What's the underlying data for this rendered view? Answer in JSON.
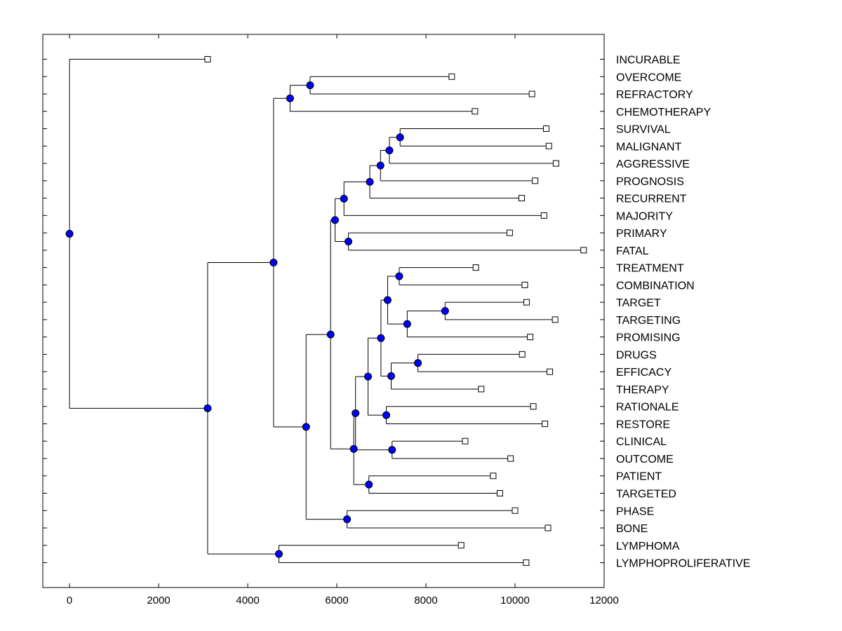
{
  "chart_data": {
    "type": "dendrogram",
    "title": "",
    "xlabel": "",
    "ylabel": "",
    "xlim": [
      -600,
      12000
    ],
    "x_ticks": [
      0,
      2000,
      4000,
      6000,
      8000,
      10000,
      12000
    ],
    "x_tick_labels": [
      "0",
      "2000",
      "4000",
      "6000",
      "8000",
      "10000",
      "12000"
    ],
    "grid": false,
    "legend": "none",
    "colors": {
      "node": "#0000ff",
      "line": "#000000",
      "leaf_marker": "#ffffff"
    },
    "leaves": [
      {
        "label": "INCURABLE",
        "value": 3100
      },
      {
        "label": "OVERCOME",
        "value": 8580
      },
      {
        "label": "REFRACTORY",
        "value": 10380
      },
      {
        "label": "CHEMOTHERAPY",
        "value": 9100
      },
      {
        "label": "SURVIVAL",
        "value": 10700
      },
      {
        "label": "MALIGNANT",
        "value": 10760
      },
      {
        "label": "AGGRESSIVE",
        "value": 10920
      },
      {
        "label": "PROGNOSIS",
        "value": 10450
      },
      {
        "label": "RECURRENT",
        "value": 10150
      },
      {
        "label": "MAJORITY",
        "value": 10650
      },
      {
        "label": "PRIMARY",
        "value": 9880
      },
      {
        "label": "FATAL",
        "value": 11540
      },
      {
        "label": "TREATMENT",
        "value": 9120
      },
      {
        "label": "COMBINATION",
        "value": 10220
      },
      {
        "label": "TARGET",
        "value": 10260
      },
      {
        "label": "TARGETING",
        "value": 10900
      },
      {
        "label": "PROMISING",
        "value": 10340
      },
      {
        "label": "DRUGS",
        "value": 10160
      },
      {
        "label": "EFFICACY",
        "value": 10780
      },
      {
        "label": "THERAPY",
        "value": 9240
      },
      {
        "label": "RATIONALE",
        "value": 10410
      },
      {
        "label": "RESTORE",
        "value": 10670
      },
      {
        "label": "CLINICAL",
        "value": 8880
      },
      {
        "label": "OUTCOME",
        "value": 9900
      },
      {
        "label": "PATIENT",
        "value": 9510
      },
      {
        "label": "TARGETED",
        "value": 9660
      },
      {
        "label": "PHASE",
        "value": 10000
      },
      {
        "label": "BONE",
        "value": 10740
      },
      {
        "label": "LYMPHOMA",
        "value": 8790
      },
      {
        "label": "LYMPHOPROLIFERATIVE",
        "value": 10250
      }
    ],
    "merges": [
      {
        "id": "n1",
        "height": 5400,
        "children": [
          "OVERCOME",
          "REFRACTORY"
        ]
      },
      {
        "id": "n2",
        "height": 4950,
        "children": [
          "n1",
          "CHEMOTHERAPY"
        ]
      },
      {
        "id": "n3",
        "height": 7420,
        "children": [
          "SURVIVAL",
          "MALIGNANT"
        ]
      },
      {
        "id": "n4",
        "height": 7180,
        "children": [
          "n3",
          "AGGRESSIVE"
        ]
      },
      {
        "id": "n5",
        "height": 6980,
        "children": [
          "n4",
          "PROGNOSIS"
        ]
      },
      {
        "id": "n6",
        "height": 6740,
        "children": [
          "n5",
          "RECURRENT"
        ]
      },
      {
        "id": "n7",
        "height": 6160,
        "children": [
          "n6",
          "MAJORITY"
        ]
      },
      {
        "id": "n8",
        "height": 6260,
        "children": [
          "PRIMARY",
          "FATAL"
        ]
      },
      {
        "id": "n9",
        "height": 5960,
        "children": [
          "n7",
          "n8"
        ]
      },
      {
        "id": "n10",
        "height": 7400,
        "children": [
          "TREATMENT",
          "COMBINATION"
        ]
      },
      {
        "id": "n11",
        "height": 8430,
        "children": [
          "TARGET",
          "TARGETING"
        ]
      },
      {
        "id": "n12",
        "height": 7580,
        "children": [
          "n11",
          "PROMISING"
        ]
      },
      {
        "id": "n13",
        "height": 7140,
        "children": [
          "n10",
          "n12"
        ]
      },
      {
        "id": "n14",
        "height": 7820,
        "children": [
          "DRUGS",
          "EFFICACY"
        ]
      },
      {
        "id": "n15",
        "height": 7220,
        "children": [
          "n14",
          "THERAPY"
        ]
      },
      {
        "id": "n16",
        "height": 6990,
        "children": [
          "n13",
          "n15"
        ]
      },
      {
        "id": "n17",
        "height": 7110,
        "children": [
          "RATIONALE",
          "RESTORE"
        ]
      },
      {
        "id": "n18",
        "height": 6700,
        "children": [
          "n16",
          "n17"
        ]
      },
      {
        "id": "n19",
        "height": 7240,
        "children": [
          "CLINICAL",
          "OUTCOME"
        ]
      },
      {
        "id": "n20",
        "height": 6420,
        "children": [
          "n18",
          "n19"
        ]
      },
      {
        "id": "n21",
        "height": 6720,
        "children": [
          "PATIENT",
          "TARGETED"
        ]
      },
      {
        "id": "n22",
        "height": 6380,
        "children": [
          "n20",
          "n21"
        ]
      },
      {
        "id": "n23",
        "height": 5860,
        "children": [
          "n9",
          "n22"
        ]
      },
      {
        "id": "n24",
        "height": 6230,
        "children": [
          "PHASE",
          "BONE"
        ]
      },
      {
        "id": "n25",
        "height": 5310,
        "children": [
          "n23",
          "n24"
        ]
      },
      {
        "id": "n26",
        "height": 4580,
        "children": [
          "n2",
          "n25"
        ]
      },
      {
        "id": "n27",
        "height": 4700,
        "children": [
          "LYMPHOMA",
          "LYMPHOPROLIFERATIVE"
        ]
      },
      {
        "id": "n28",
        "height": 3100,
        "children": [
          "n26",
          "n27"
        ]
      },
      {
        "id": "n29",
        "height": 0,
        "children": [
          "INCURABLE",
          "n28"
        ]
      }
    ]
  }
}
